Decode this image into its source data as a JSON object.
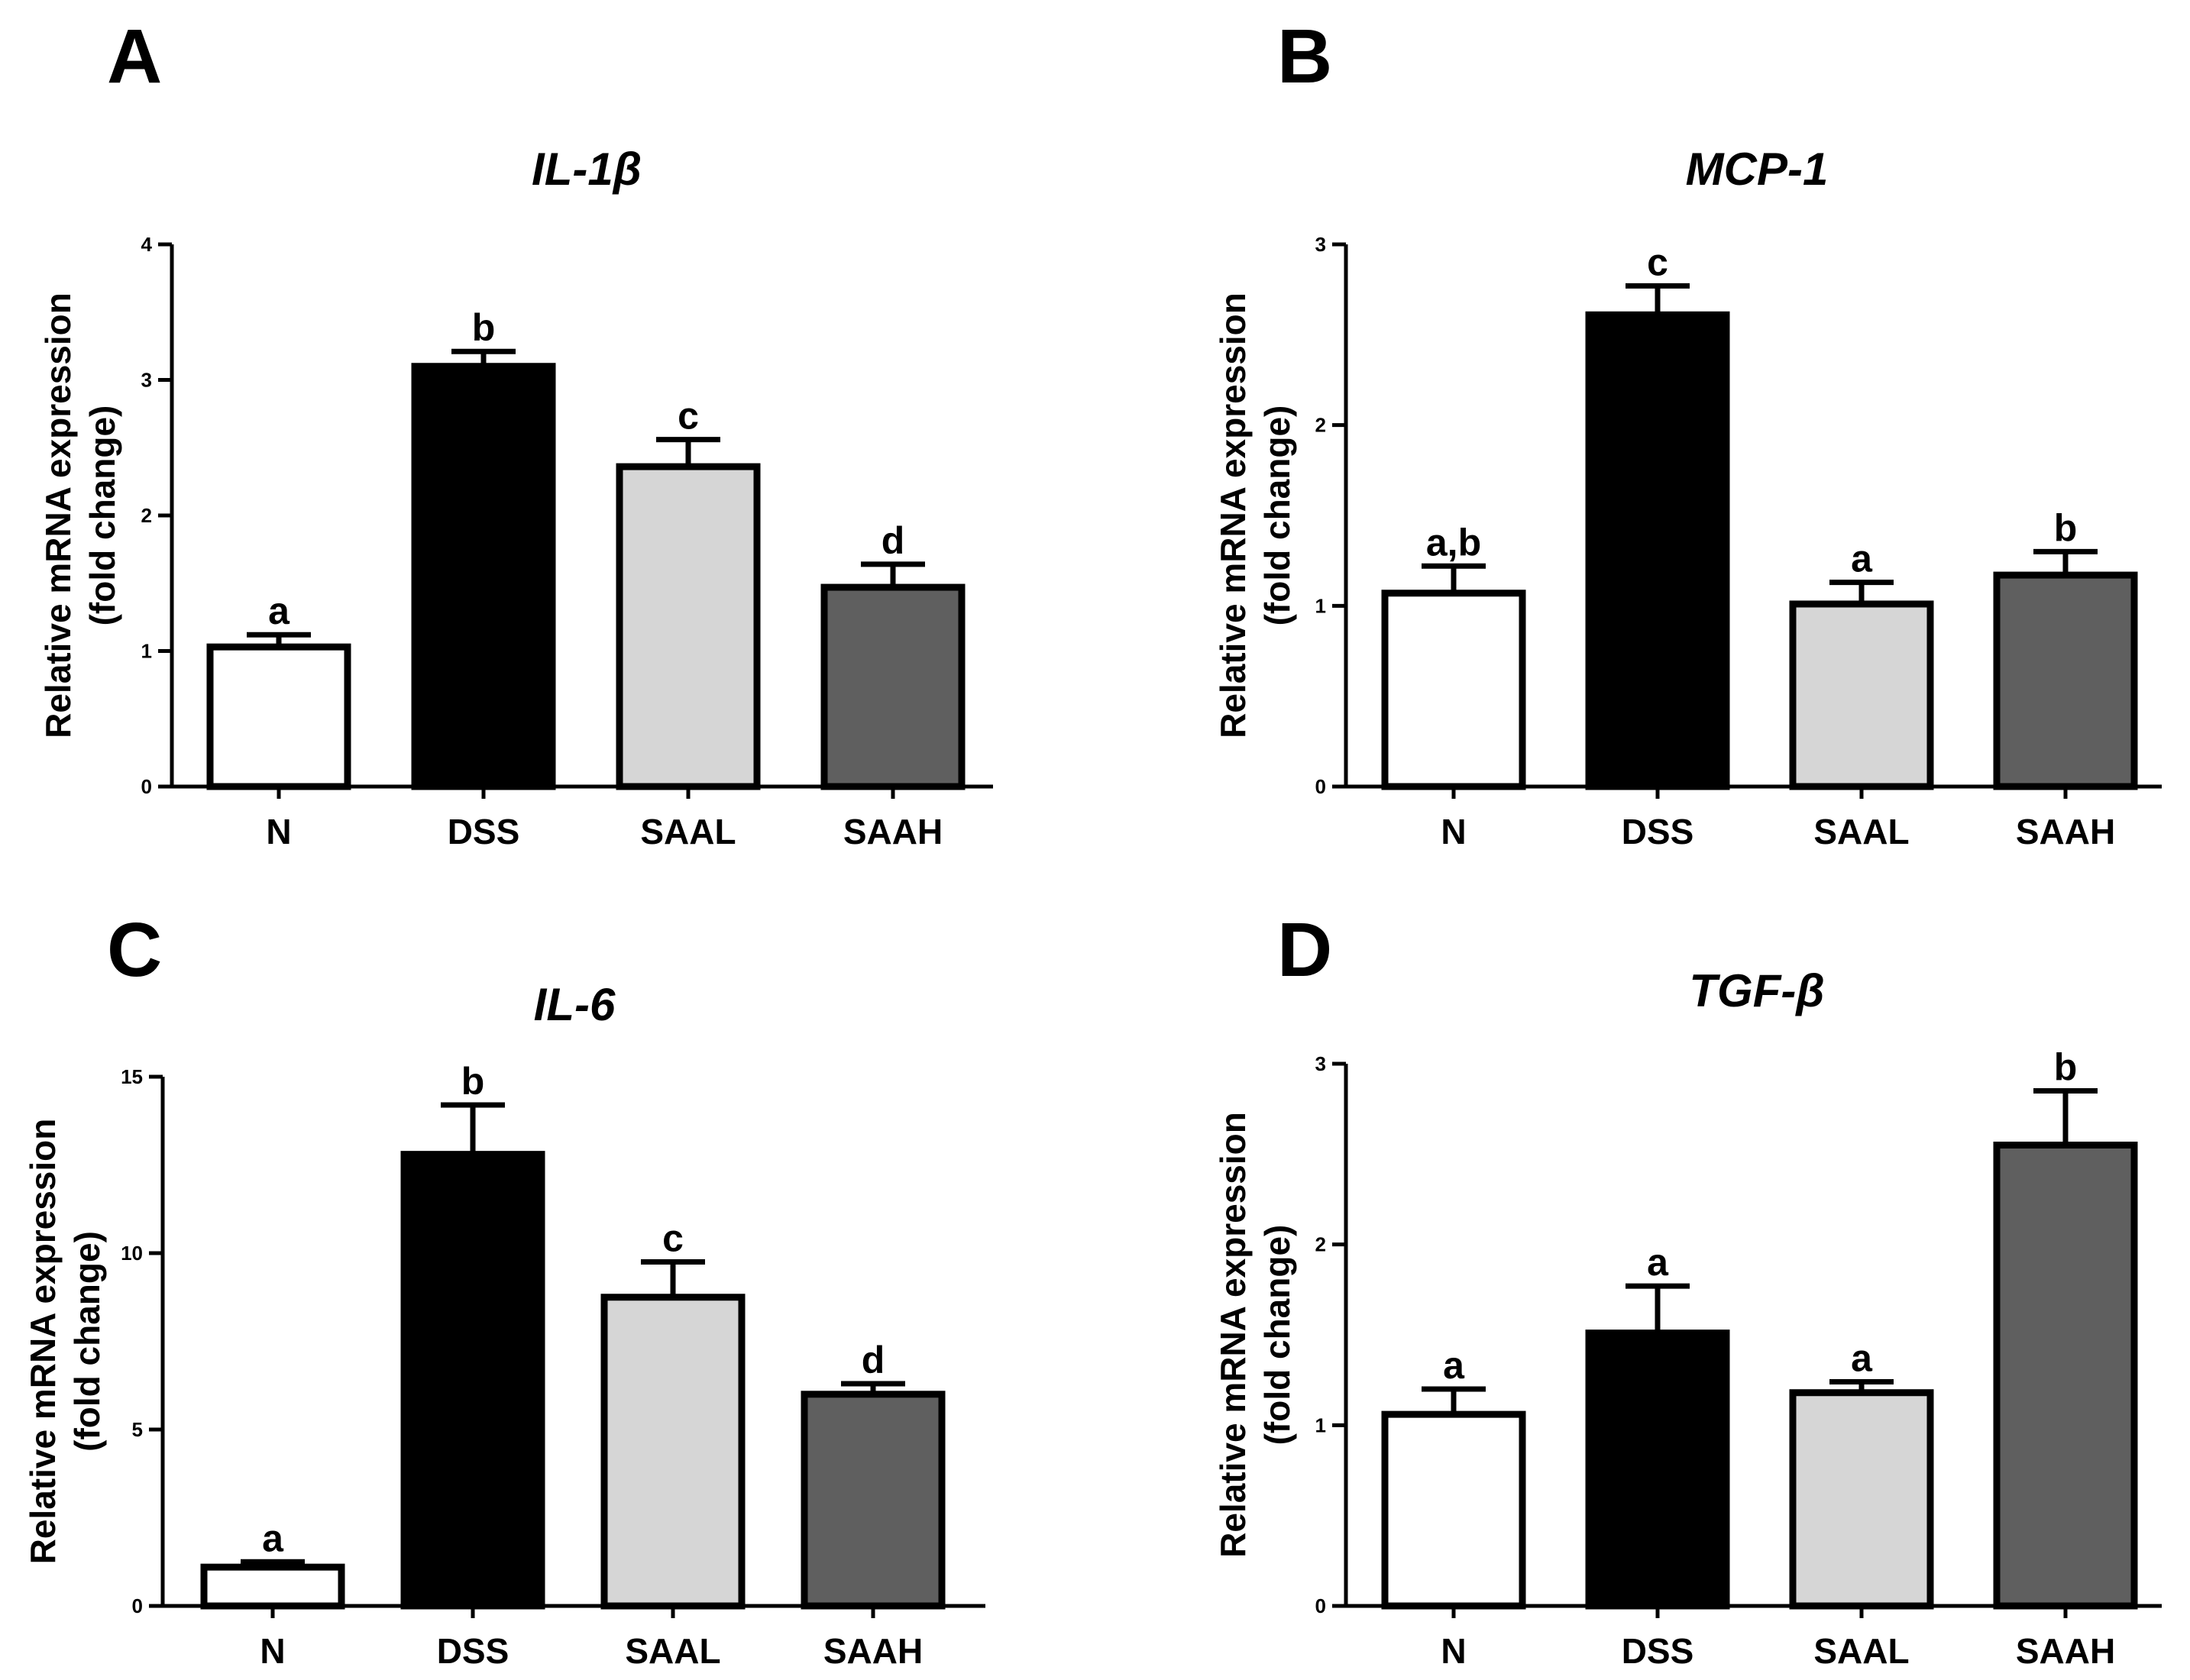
{
  "figure": {
    "panels": [
      "A",
      "B",
      "C",
      "D"
    ]
  },
  "colors": {
    "N": "#ffffff",
    "DSS": "#000000",
    "SAAL": "#d6d6d6",
    "SAAH": "#5f5f5f",
    "stroke": "#000000"
  },
  "chart_data": [
    {
      "panel": "A",
      "type": "bar",
      "title": "IL-1β",
      "xlabel": "",
      "ylabel_lines": [
        "Relative mRNA expression",
        "(fold change)"
      ],
      "categories": [
        "N",
        "DSS",
        "SAAL",
        "SAAH"
      ],
      "values": [
        1.03,
        3.1,
        2.36,
        1.47
      ],
      "errors": [
        0.09,
        0.11,
        0.2,
        0.17
      ],
      "significance": [
        "a",
        "b",
        "c",
        "d"
      ],
      "ylim": [
        0,
        4
      ],
      "yticks": [
        0,
        1,
        2,
        3,
        4
      ],
      "grid": false
    },
    {
      "panel": "B",
      "type": "bar",
      "title": "MCP-1",
      "xlabel": "",
      "ylabel_lines": [
        "Relative mRNA expression",
        "(fold change)"
      ],
      "categories": [
        "N",
        "DSS",
        "SAAL",
        "SAAH"
      ],
      "values": [
        1.07,
        2.61,
        1.01,
        1.17
      ],
      "errors": [
        0.15,
        0.16,
        0.12,
        0.13
      ],
      "significance": [
        "a,b",
        "c",
        "a",
        "b"
      ],
      "ylim": [
        0,
        3
      ],
      "yticks": [
        0,
        1,
        2,
        3
      ],
      "grid": false
    },
    {
      "panel": "C",
      "type": "bar",
      "title": "IL-6",
      "xlabel": "",
      "ylabel_lines": [
        "Relative mRNA expression",
        "(fold change)"
      ],
      "categories": [
        "N",
        "DSS",
        "SAAL",
        "SAAH"
      ],
      "values": [
        1.1,
        12.8,
        8.75,
        6.0
      ],
      "errors": [
        0.15,
        1.4,
        1.0,
        0.3
      ],
      "significance": [
        "a",
        "b",
        "c",
        "d"
      ],
      "ylim": [
        0,
        15
      ],
      "yticks": [
        0,
        5,
        10,
        15
      ],
      "grid": false
    },
    {
      "panel": "D",
      "type": "bar",
      "title": "TGF-β",
      "xlabel": "",
      "ylabel_lines": [
        "Relative mRNA expression",
        "(fold change)"
      ],
      "categories": [
        "N",
        "DSS",
        "SAAL",
        "SAAH"
      ],
      "values": [
        1.06,
        1.51,
        1.18,
        2.55
      ],
      "errors": [
        0.14,
        0.26,
        0.06,
        0.3
      ],
      "significance": [
        "a",
        "a",
        "a",
        "b"
      ],
      "ylim": [
        0,
        3
      ],
      "yticks": [
        0,
        1,
        2,
        3
      ],
      "grid": false
    }
  ]
}
